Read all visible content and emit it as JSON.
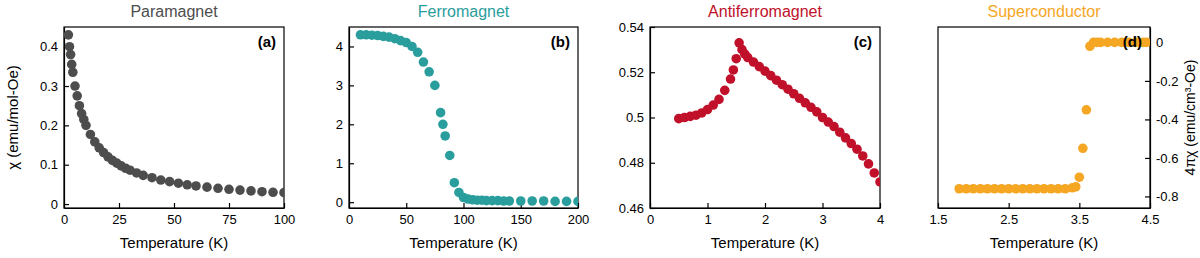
{
  "chart_data": [
    {
      "type": "scatter",
      "title": "Paramagnet",
      "annotations": [
        "(a)"
      ],
      "xlabel": "Temperature (K)",
      "ylabel": "χ (emu/mol-Oe)",
      "xlim": [
        0,
        100
      ],
      "xticks": [
        0,
        25,
        50,
        75,
        100
      ],
      "ylim": [
        -0.01,
        0.45
      ],
      "yticks": [
        0,
        0.1,
        0.2,
        0.3,
        0.4
      ],
      "x": [
        2,
        2.5,
        3,
        3.5,
        4,
        5,
        6,
        7,
        8,
        9,
        10,
        12,
        14,
        16,
        18,
        20,
        22,
        24,
        26,
        28,
        30,
        33,
        36,
        40,
        44,
        48,
        52,
        56,
        60,
        65,
        70,
        75,
        80,
        85,
        90,
        95,
        100
      ],
      "series": [
        {
          "color": "#4d4d4d",
          "marker": "circle",
          "values": [
            0.43,
            0.4,
            0.38,
            0.355,
            0.335,
            0.3,
            0.275,
            0.25,
            0.23,
            0.215,
            0.2,
            0.177,
            0.158,
            0.143,
            0.131,
            0.12,
            0.111,
            0.104,
            0.097,
            0.091,
            0.086,
            0.079,
            0.073,
            0.067,
            0.061,
            0.057,
            0.053,
            0.049,
            0.046,
            0.043,
            0.04,
            0.0375,
            0.0355,
            0.0335,
            0.0315,
            0.03,
            0.029
          ]
        }
      ]
    },
    {
      "type": "scatter",
      "title": "Ferromagnet",
      "annotations": [
        "(b)"
      ],
      "xlabel": "Temperature (K)",
      "xlim": [
        0,
        200
      ],
      "xticks": [
        0,
        50,
        100,
        150,
        200
      ],
      "ylim": [
        -0.15,
        4.5
      ],
      "yticks": [
        0,
        1,
        2,
        3,
        4
      ],
      "x": [
        10,
        15,
        20,
        25,
        30,
        35,
        40,
        45,
        50,
        55,
        60,
        65,
        70,
        75,
        80,
        82,
        84,
        88,
        92,
        96,
        100,
        104,
        108,
        112,
        116,
        120,
        125,
        130,
        135,
        140,
        150,
        160,
        170,
        180,
        190,
        200
      ],
      "series": [
        {
          "color": "#2a9d9d",
          "marker": "circle",
          "values": [
            4.3,
            4.3,
            4.29,
            4.28,
            4.26,
            4.24,
            4.2,
            4.15,
            4.1,
            4.0,
            3.85,
            3.6,
            3.35,
            3.0,
            2.3,
            2.0,
            1.7,
            1.2,
            0.5,
            0.25,
            0.12,
            0.08,
            0.06,
            0.05,
            0.05,
            0.04,
            0.04,
            0.04,
            0.03,
            0.03,
            0.03,
            0.03,
            0.03,
            0.02,
            0.02,
            0.02
          ]
        }
      ]
    },
    {
      "type": "scatter",
      "title": "Antiferromagnet",
      "annotations": [
        "(c)"
      ],
      "xlabel": "Temperature (K)",
      "xlim": [
        0,
        4
      ],
      "xticks": [
        0,
        1,
        2,
        3,
        4
      ],
      "ylim": [
        0.46,
        0.54
      ],
      "yticks": [
        0.46,
        0.48,
        0.5,
        0.52,
        0.54
      ],
      "x": [
        0.5,
        0.6,
        0.7,
        0.8,
        0.9,
        1.0,
        1.1,
        1.2,
        1.3,
        1.4,
        1.45,
        1.5,
        1.55,
        1.6,
        1.65,
        1.7,
        1.8,
        1.9,
        2.0,
        2.1,
        2.2,
        2.3,
        2.4,
        2.5,
        2.6,
        2.7,
        2.8,
        2.9,
        3.0,
        3.1,
        3.2,
        3.3,
        3.4,
        3.5,
        3.6,
        3.7,
        3.8,
        3.9,
        4.0
      ],
      "series": [
        {
          "color": "#c0102a",
          "marker": "circle",
          "values": [
            0.4995,
            0.5,
            0.5005,
            0.501,
            0.502,
            0.5035,
            0.5055,
            0.508,
            0.512,
            0.517,
            0.521,
            0.526,
            0.533,
            0.53,
            0.528,
            0.5265,
            0.5245,
            0.5225,
            0.5205,
            0.5185,
            0.5165,
            0.5145,
            0.5125,
            0.5105,
            0.5085,
            0.5065,
            0.5045,
            0.5025,
            0.5,
            0.498,
            0.496,
            0.4935,
            0.491,
            0.4885,
            0.486,
            0.483,
            0.4795,
            0.4755,
            0.4715
          ]
        }
      ]
    },
    {
      "type": "scatter",
      "title": "Superconductor",
      "annotations": [
        "(d)"
      ],
      "xlabel": "Temperature (K)",
      "y2label": "4πχ (emu/cm³-Oe)",
      "xlim": [
        1.5,
        4.5
      ],
      "xticks": [
        1.5,
        2.5,
        3.5,
        4.5
      ],
      "y2lim": [
        -0.86,
        0.08
      ],
      "y2ticks": [
        0,
        -0.2,
        -0.4,
        -0.6,
        -0.8
      ],
      "x": [
        1.8,
        1.9,
        2.0,
        2.1,
        2.2,
        2.3,
        2.4,
        2.5,
        2.6,
        2.7,
        2.8,
        2.9,
        3.0,
        3.1,
        3.2,
        3.3,
        3.4,
        3.45,
        3.5,
        3.55,
        3.6,
        3.65,
        3.7,
        3.75,
        3.8,
        3.9,
        4.0,
        4.1,
        4.2,
        4.3,
        4.4,
        4.45
      ],
      "series": [
        {
          "color": "#f5a623",
          "marker": "circle",
          "axis": "y2",
          "values": [
            -0.76,
            -0.76,
            -0.76,
            -0.76,
            -0.76,
            -0.76,
            -0.76,
            -0.76,
            -0.76,
            -0.76,
            -0.76,
            -0.76,
            -0.76,
            -0.76,
            -0.76,
            -0.76,
            -0.755,
            -0.75,
            -0.7,
            -0.55,
            -0.35,
            -0.02,
            0,
            0,
            0,
            0,
            0,
            0,
            0,
            0,
            0,
            0
          ]
        }
      ]
    }
  ]
}
